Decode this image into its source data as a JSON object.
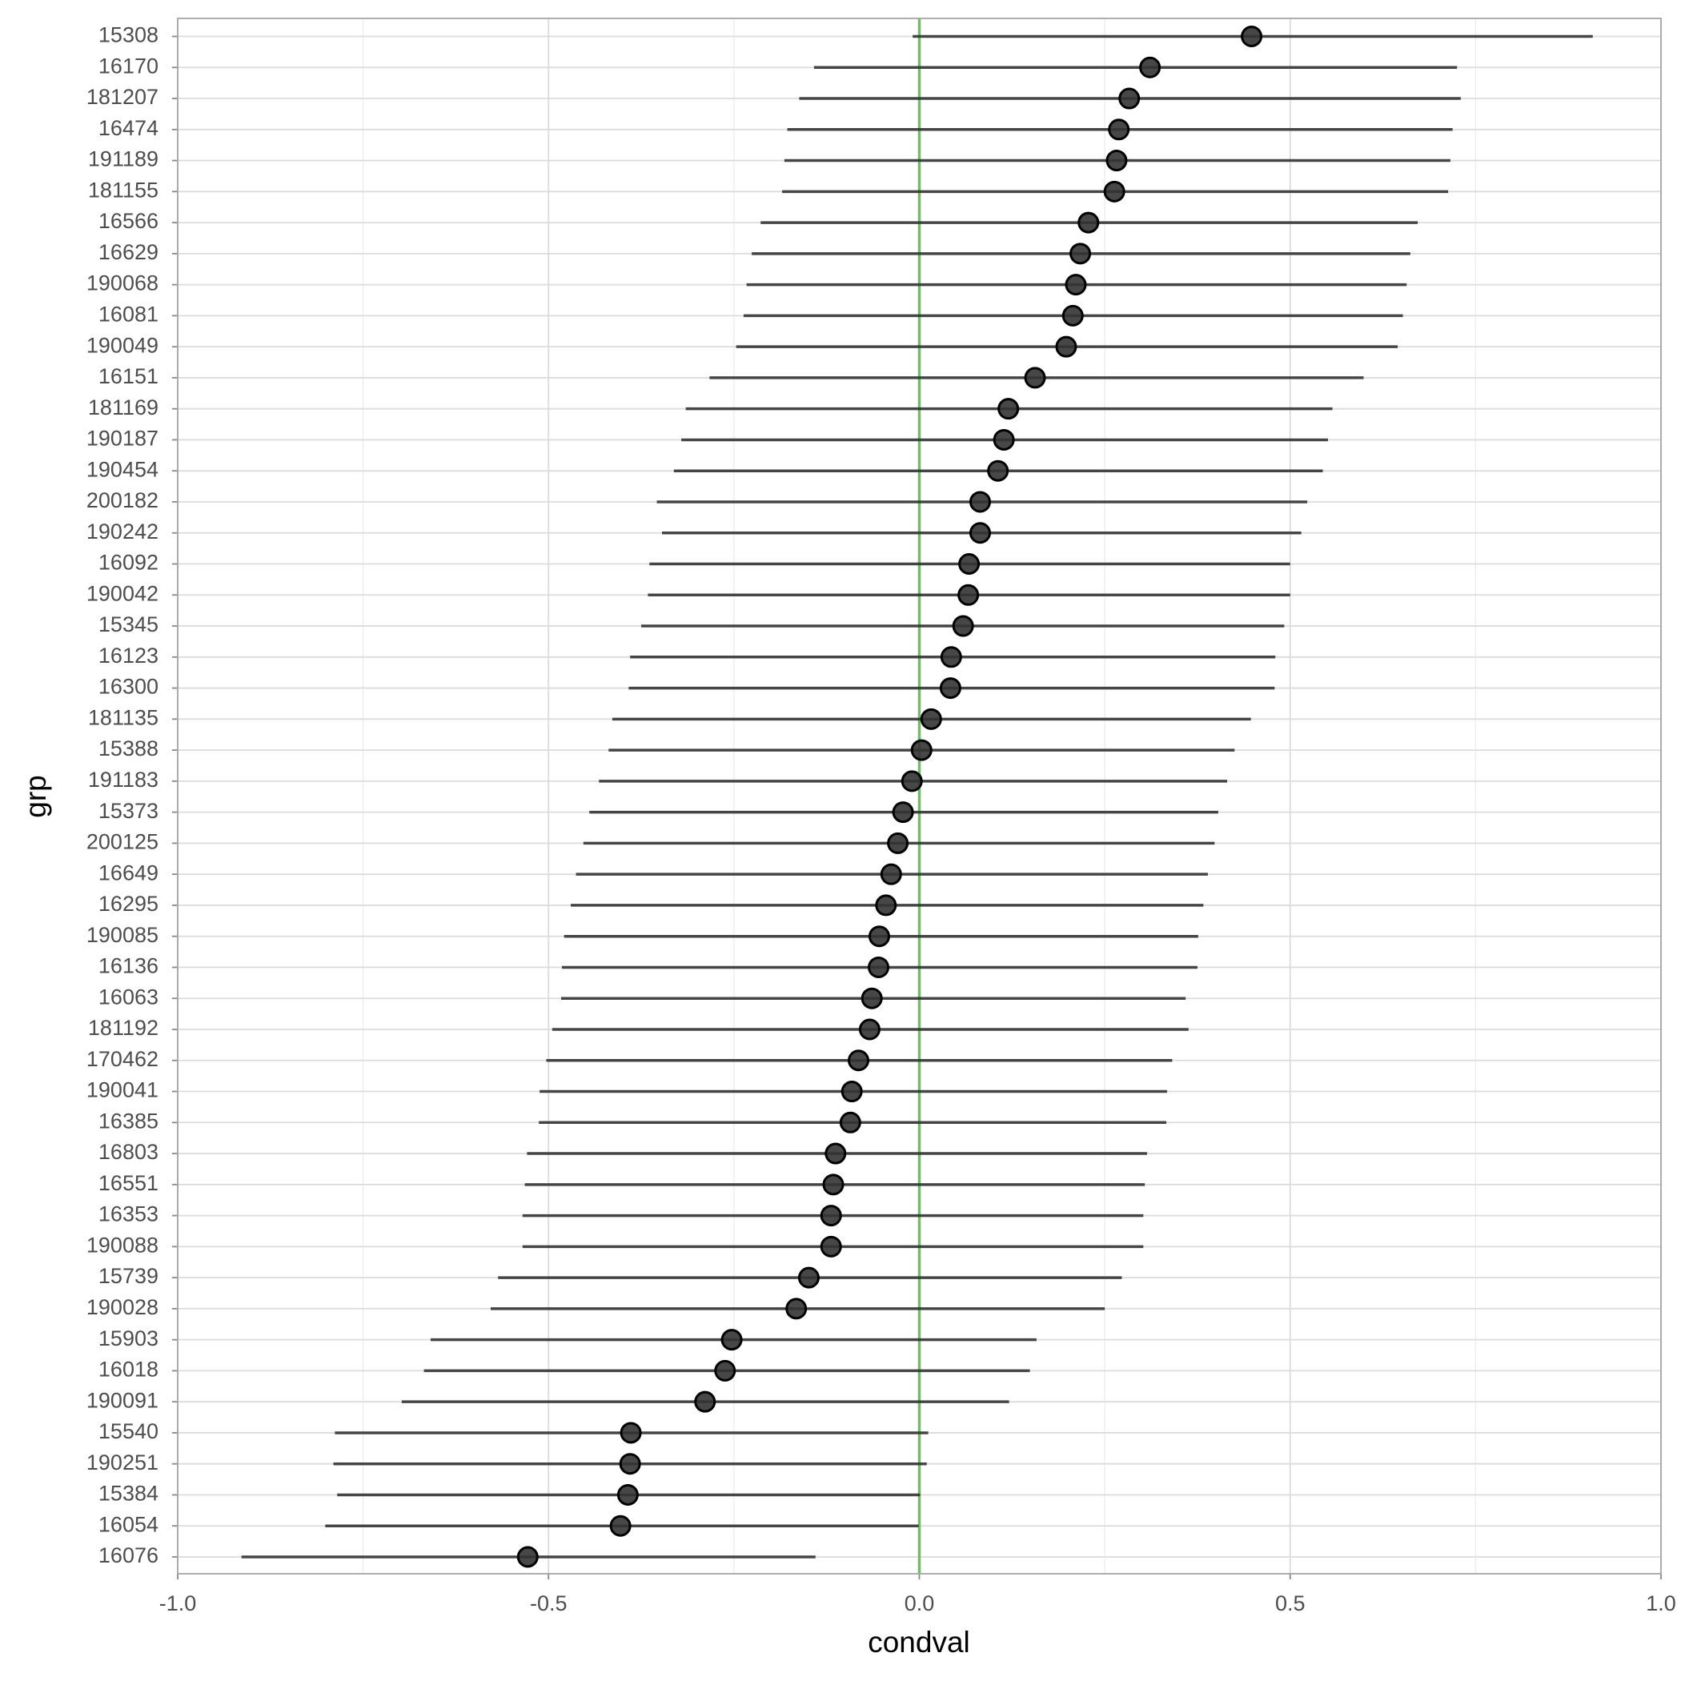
{
  "chart_data": {
    "type": "dotwhisker",
    "x_label": "condval",
    "y_label": "grp",
    "xlim": [
      -1.0,
      1.0
    ],
    "xticks": [
      {
        "value": -1.0,
        "label": "-1.0"
      },
      {
        "value": -0.5,
        "label": "-0.5"
      },
      {
        "value": 0,
        "label": "0.0"
      },
      {
        "value": 0.5,
        "label": "0.5"
      },
      {
        "value": 1.0,
        "label": "1.0"
      }
    ],
    "grid": true,
    "reference_line": 0,
    "reference_color": "#6abf69",
    "color": "#333333",
    "categories": [
      "15308",
      "16170",
      "181207",
      "16474",
      "191189",
      "181155",
      "16566",
      "16629",
      "190068",
      "16081",
      "190049",
      "16151",
      "181169",
      "190187",
      "190454",
      "200182",
      "190242",
      "16092",
      "190042",
      "15345",
      "16123",
      "16300",
      "181135",
      "15388",
      "191183",
      "15373",
      "200125",
      "16649",
      "16295",
      "190085",
      "16136",
      "16063",
      "181192",
      "170462",
      "190041",
      "16385",
      "16803",
      "16551",
      "16353",
      "190088",
      "15739",
      "190028",
      "15903",
      "16018",
      "190091",
      "15540",
      "190251",
      "15384",
      "16054",
      "16076"
    ],
    "values": [
      0.448,
      0.311,
      0.283,
      0.269,
      0.266,
      0.263,
      0.228,
      0.217,
      0.211,
      0.207,
      0.198,
      0.156,
      0.12,
      0.114,
      0.106,
      0.082,
      0.082,
      0.067,
      0.066,
      0.059,
      0.043,
      0.042,
      0.016,
      0.003,
      -0.01,
      -0.022,
      -0.029,
      -0.038,
      -0.045,
      -0.054,
      -0.055,
      -0.064,
      -0.067,
      -0.082,
      -0.091,
      -0.093,
      -0.113,
      -0.116,
      -0.119,
      -0.119,
      -0.149,
      -0.166,
      -0.253,
      -0.262,
      -0.289,
      -0.389,
      -0.39,
      -0.393,
      -0.403,
      -0.528
    ],
    "lower": [
      -0.009,
      -0.142,
      -0.162,
      -0.178,
      -0.182,
      -0.185,
      -0.214,
      -0.226,
      -0.233,
      -0.237,
      -0.247,
      -0.283,
      -0.315,
      -0.321,
      -0.331,
      -0.354,
      -0.347,
      -0.364,
      -0.366,
      -0.375,
      -0.39,
      -0.392,
      -0.414,
      -0.419,
      -0.432,
      -0.445,
      -0.453,
      -0.463,
      -0.47,
      -0.479,
      -0.482,
      -0.483,
      -0.495,
      -0.503,
      -0.512,
      -0.513,
      -0.529,
      -0.532,
      -0.535,
      -0.535,
      -0.568,
      -0.578,
      -0.659,
      -0.668,
      -0.698,
      -0.788,
      -0.79,
      -0.785,
      -0.801,
      -0.914
    ],
    "upper": [
      0.908,
      0.725,
      0.73,
      0.719,
      0.716,
      0.713,
      0.672,
      0.662,
      0.657,
      0.652,
      0.645,
      0.599,
      0.557,
      0.551,
      0.544,
      0.523,
      0.515,
      0.5,
      0.5,
      0.492,
      0.48,
      0.479,
      0.447,
      0.425,
      0.415,
      0.403,
      0.398,
      0.389,
      0.383,
      0.376,
      0.375,
      0.359,
      0.363,
      0.341,
      0.334,
      0.333,
      0.307,
      0.304,
      0.302,
      0.302,
      0.273,
      0.25,
      0.158,
      0.149,
      0.121,
      0.012,
      0.01,
      0.001,
      -0.001,
      -0.14
    ]
  }
}
